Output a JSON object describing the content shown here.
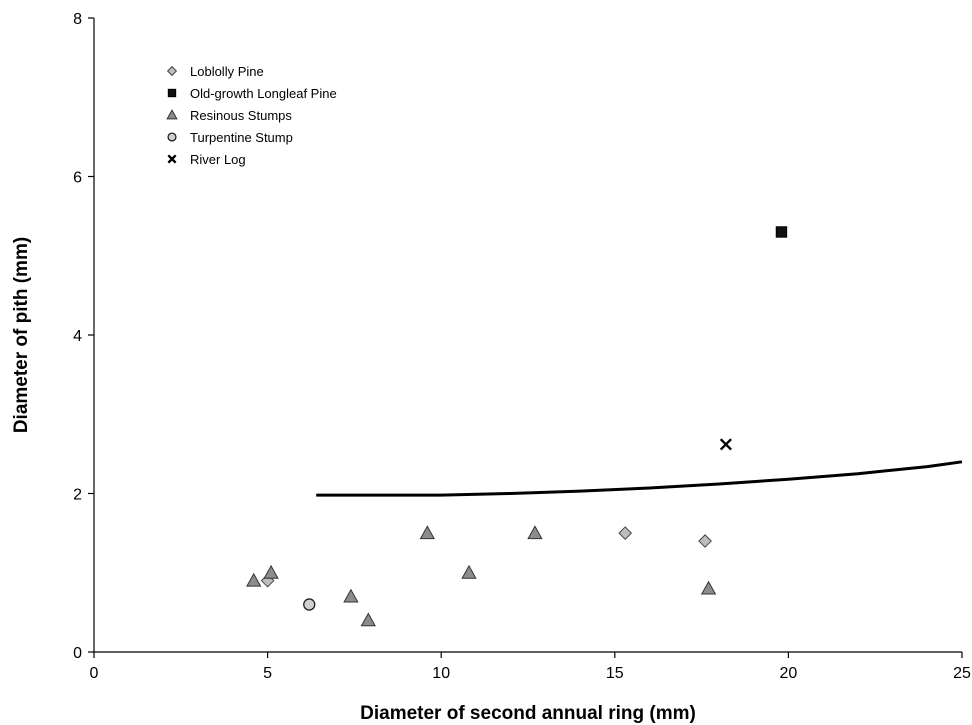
{
  "chart_data": {
    "type": "scatter",
    "title": "",
    "xlabel": "Diameter of second annual ring (mm)",
    "ylabel": "Diameter of pith (mm)",
    "xlim": [
      0,
      25
    ],
    "ylim": [
      0,
      8
    ],
    "x_ticks": [
      0,
      5,
      10,
      15,
      20,
      25
    ],
    "y_ticks": [
      0,
      2,
      4,
      6,
      8
    ],
    "grid": false,
    "legend_position": "top-left",
    "series": [
      {
        "name": "Loblolly Pine",
        "marker": "diamond",
        "color": "#bdbdbd",
        "points": [
          [
            5.0,
            0.9
          ],
          [
            15.3,
            1.5
          ],
          [
            17.6,
            1.4
          ]
        ]
      },
      {
        "name": "Old-growth Longleaf Pine",
        "marker": "square",
        "color": "#111111",
        "points": [
          [
            19.8,
            5.3
          ]
        ]
      },
      {
        "name": "Resinous Stumps",
        "marker": "triangle",
        "color": "#8c8c8c",
        "points": [
          [
            4.6,
            0.9
          ],
          [
            5.1,
            1.0
          ],
          [
            7.4,
            0.7
          ],
          [
            7.9,
            0.4
          ],
          [
            9.6,
            1.5
          ],
          [
            10.8,
            1.0
          ],
          [
            12.7,
            1.5
          ],
          [
            17.7,
            0.8
          ]
        ]
      },
      {
        "name": "Turpentine Stump",
        "marker": "circle",
        "color": "#d0d0d0",
        "points": [
          [
            6.2,
            0.6
          ]
        ]
      },
      {
        "name": "River Log",
        "marker": "x",
        "color": "#000000",
        "points": [
          [
            18.2,
            2.62
          ]
        ]
      }
    ],
    "curve": {
      "points": [
        [
          6.4,
          1.98
        ],
        [
          8.0,
          1.98
        ],
        [
          10.0,
          1.98
        ],
        [
          12.0,
          2.0
        ],
        [
          14.0,
          2.03
        ],
        [
          16.0,
          2.07
        ],
        [
          18.0,
          2.12
        ],
        [
          20.0,
          2.18
        ],
        [
          22.0,
          2.25
        ],
        [
          24.0,
          2.34
        ],
        [
          25.0,
          2.4
        ]
      ]
    }
  }
}
